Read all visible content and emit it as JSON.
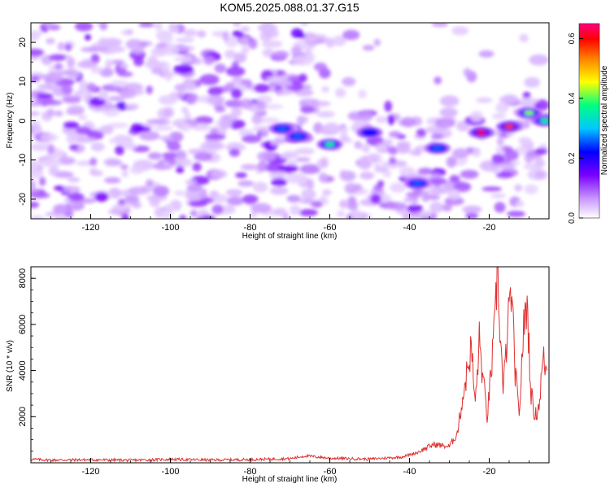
{
  "title": "KOM5.2025.088.01.37.G15",
  "chart_data": [
    {
      "type": "heatmap",
      "xlabel": "Height of straight line (km)",
      "ylabel": "Frequency (Hz)",
      "xlim": [
        -135,
        -5
      ],
      "ylim": [
        -25,
        25
      ],
      "x_ticks": [
        -120,
        -100,
        -80,
        -60,
        -40,
        -20
      ],
      "y_ticks": [
        -20,
        -10,
        0,
        10,
        20
      ],
      "colorbar": {
        "label": "Normalized spectral amplitude",
        "range": [
          0.0,
          0.65
        ],
        "ticks": [
          0.0,
          0.2,
          0.4,
          0.6
        ],
        "colormap": [
          "#ffffff",
          "#c896ff",
          "#7a00ff",
          "#0000ff",
          "#00c8ff",
          "#00ff80",
          "#ffff00",
          "#ff8000",
          "#ff0000",
          "#ff0080"
        ]
      },
      "features": [
        {
          "x": -72,
          "y": -2,
          "amplitude": 0.25
        },
        {
          "x": -68,
          "y": -4,
          "amplitude": 0.25
        },
        {
          "x": -60,
          "y": -6,
          "amplitude": 0.35
        },
        {
          "x": -50,
          "y": -3,
          "amplitude": 0.2
        },
        {
          "x": -38,
          "y": -16,
          "amplitude": 0.25
        },
        {
          "x": -33,
          "y": -7,
          "amplitude": 0.25
        },
        {
          "x": -22,
          "y": -3,
          "amplitude": 0.6
        },
        {
          "x": -15,
          "y": -1.5,
          "amplitude": 0.55
        },
        {
          "x": -10,
          "y": 2,
          "amplitude": 0.4
        },
        {
          "x": -6,
          "y": 0,
          "amplitude": 0.35
        }
      ]
    },
    {
      "type": "line",
      "xlabel": "Height of straight line (km)",
      "ylabel": "SNR (10 * v/v)",
      "xlim": [
        -135,
        -5
      ],
      "ylim": [
        0,
        8500
      ],
      "x_ticks": [
        -120,
        -100,
        -80,
        -60,
        -40,
        -20
      ],
      "y_ticks": [
        2000,
        4000,
        6000,
        8000
      ],
      "series": [
        {
          "color": "#e03030",
          "x": [
            -135,
            -130,
            -120,
            -110,
            -100,
            -90,
            -80,
            -70,
            -66,
            -60,
            -50,
            -42,
            -38,
            -34,
            -30,
            -28,
            -26.5,
            -25.5,
            -24.5,
            -23.5,
            -22.5,
            -21.5,
            -20.5,
            -19.5,
            -18.5,
            -18,
            -17.3,
            -16.5,
            -15.5,
            -14.5,
            -13.5,
            -12.5,
            -11.5,
            -10.5,
            -9.5,
            -8.5,
            -7.5,
            -6.5,
            -5.5
          ],
          "y": [
            150,
            120,
            130,
            110,
            150,
            120,
            140,
            180,
            300,
            200,
            160,
            250,
            450,
            800,
            700,
            1300,
            3000,
            4000,
            5000,
            2500,
            5300,
            3500,
            2000,
            4000,
            6000,
            8500,
            6000,
            3000,
            5500,
            7500,
            4000,
            2000,
            5500,
            7000,
            3000,
            2000,
            2500,
            4500,
            4000
          ]
        }
      ]
    }
  ]
}
